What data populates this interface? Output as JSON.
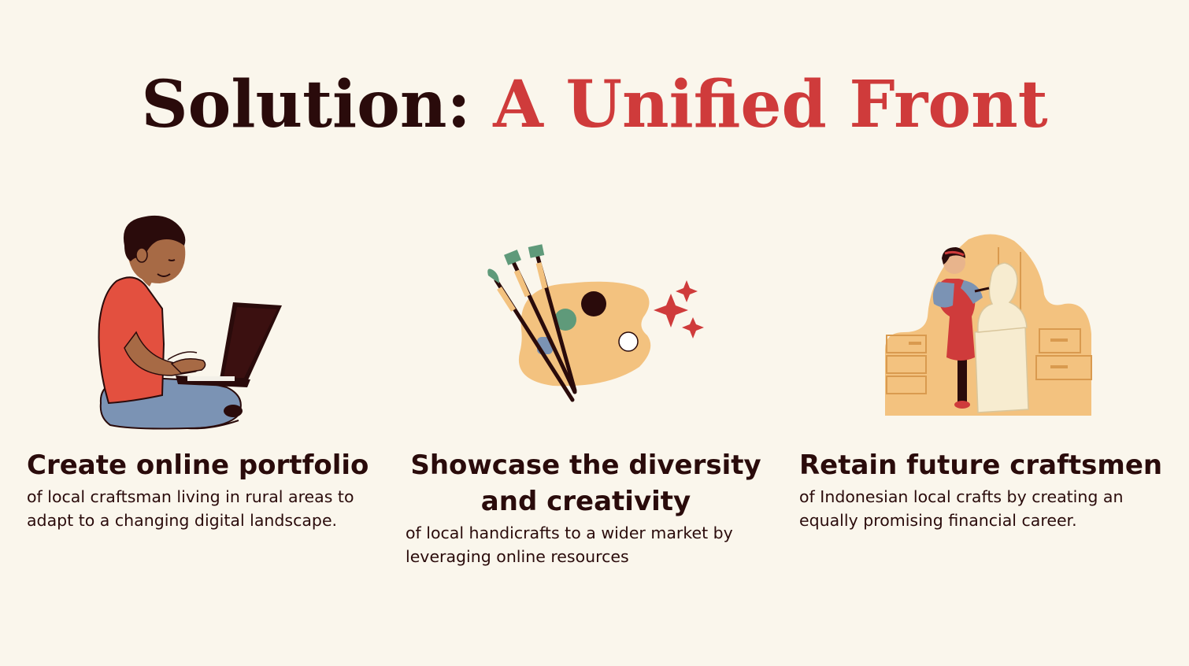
{
  "title": {
    "part1": "Solution:",
    "part2": "A Unified Front"
  },
  "columns": [
    {
      "heading_lines": [
        "Create online portfolio"
      ],
      "desc_lines": [
        "of local craftsman living in rural areas to",
        "adapt to a changing digital landscape."
      ],
      "icon": "person-with-laptop-icon"
    },
    {
      "heading_lines": [
        "Showcase the diversity",
        "and creativity"
      ],
      "desc_lines": [
        "of local handicrafts to a wider market by",
        "leveraging online resources"
      ],
      "icon": "paint-palette-icon"
    },
    {
      "heading_lines": [
        "Retain future craftsmen"
      ],
      "desc_lines": [
        "of Indonesian local crafts by creating an",
        "equally promising financial career."
      ],
      "icon": "sculptor-icon"
    }
  ],
  "colors": {
    "background": "#faf6ec",
    "text_dark": "#2a0b0b",
    "accent_red": "#cf3b3b",
    "peach": "#f3c27f"
  }
}
